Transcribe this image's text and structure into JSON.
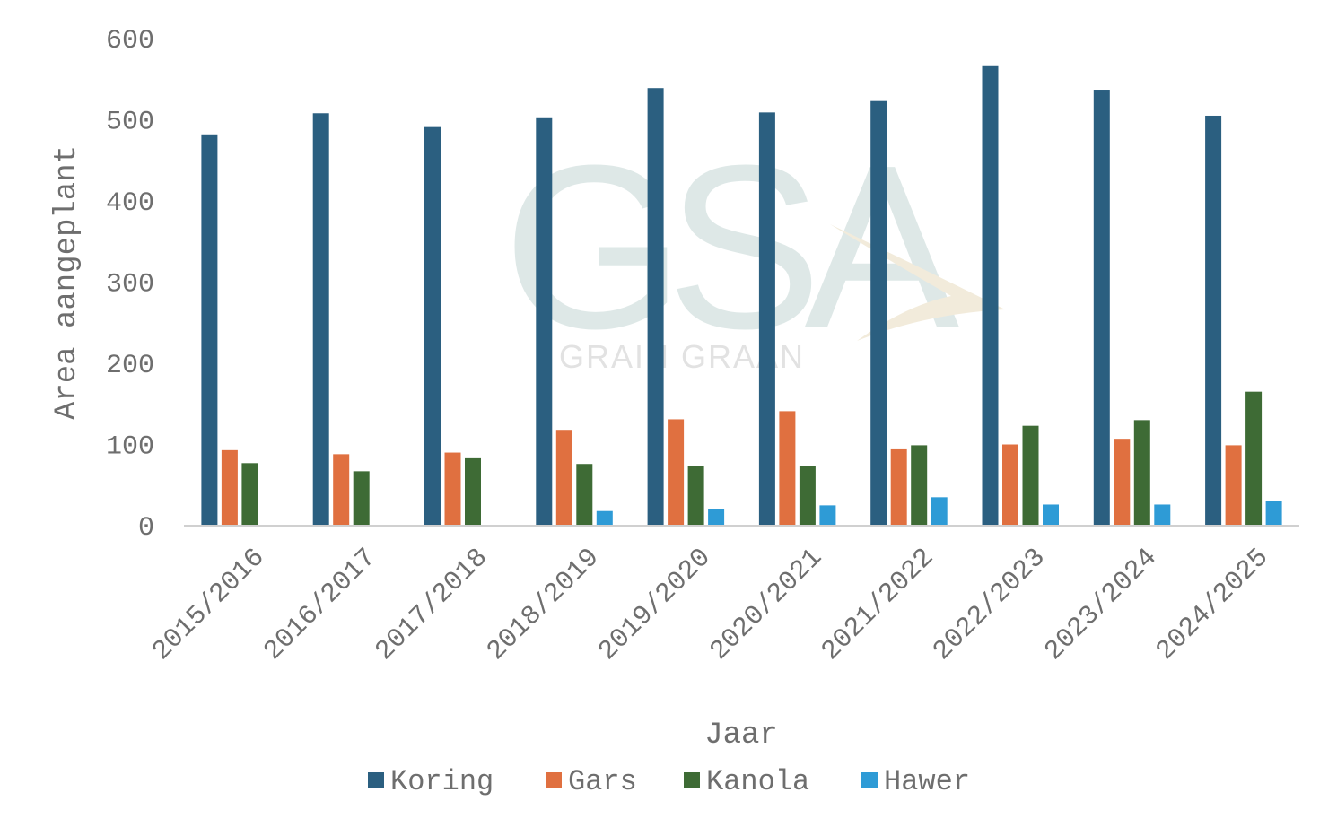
{
  "chart_data": {
    "type": "bar",
    "title": "",
    "xlabel": "Jaar",
    "ylabel": "Area aangeplant",
    "ylim": [
      0,
      600
    ],
    "yticks": [
      0,
      100,
      200,
      300,
      400,
      500,
      600
    ],
    "grid": false,
    "legend": "bottom",
    "categories": [
      "2015/2016",
      "2016/2017",
      "2017/2018",
      "2018/2019",
      "2019/2020",
      "2020/2021",
      "2021/2022",
      "2022/2023",
      "2023/2024",
      "2024/2025"
    ],
    "series": [
      {
        "name": "Koring",
        "color": "#2b5f80",
        "values": [
          482,
          508,
          491,
          503,
          539,
          509,
          523,
          566,
          537,
          505
        ]
      },
      {
        "name": "Gars",
        "color": "#e07040",
        "values": [
          93,
          88,
          90,
          118,
          131,
          141,
          94,
          100,
          107,
          99
        ]
      },
      {
        "name": "Kanola",
        "color": "#3e6b35",
        "values": [
          77,
          67,
          83,
          76,
          73,
          73,
          99,
          123,
          130,
          165
        ]
      },
      {
        "name": "Hawer",
        "color": "#2e9bd6",
        "values": [
          null,
          null,
          null,
          18,
          20,
          25,
          35,
          26,
          26,
          30
        ]
      }
    ]
  },
  "watermark": {
    "logo_text": "GSA",
    "tagline": "GRAIN GRAAN"
  }
}
